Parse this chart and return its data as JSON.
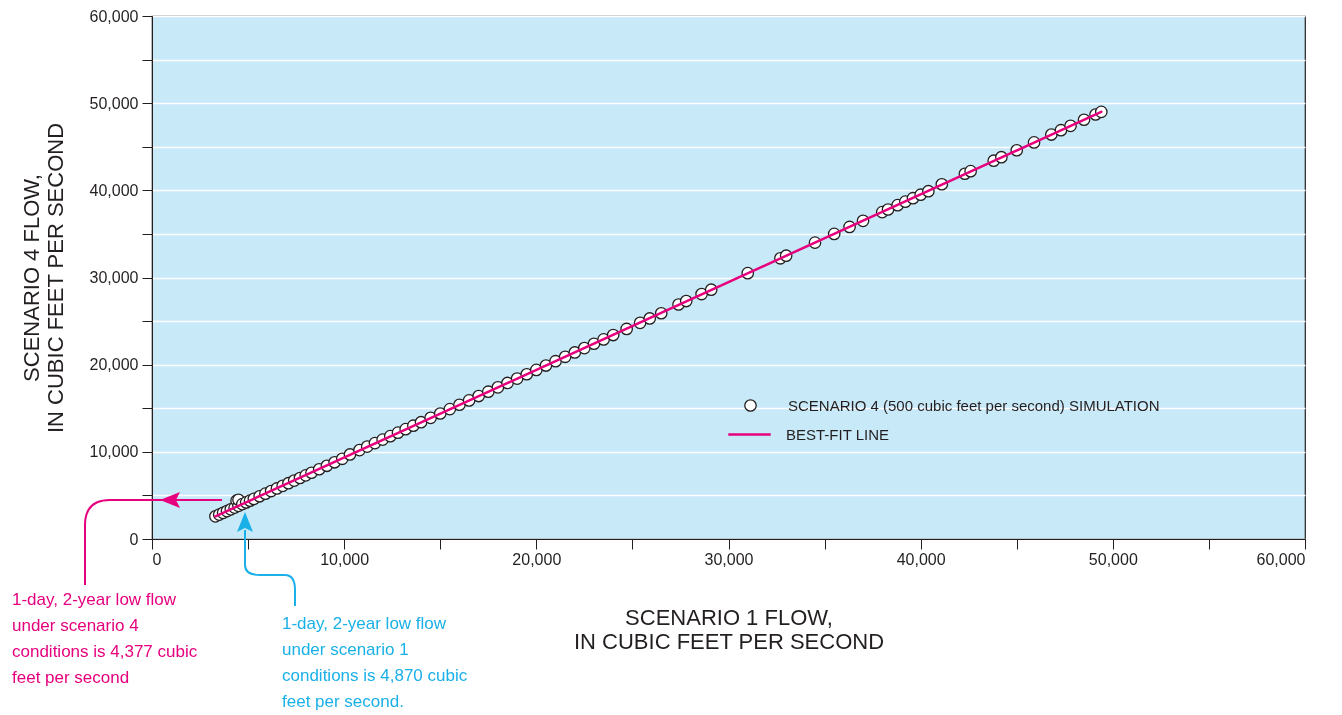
{
  "chart_data": {
    "type": "scatter",
    "xlabel": "SCENARIO 1 FLOW,\nIN CUBIC FEET PER SECOND",
    "ylabel": "SCENARIO 4 FLOW,\nIN CUBIC FEET PER SECOND",
    "xlim": [
      0,
      60000
    ],
    "ylim": [
      0,
      60000
    ],
    "xticks": [
      0,
      {
        "value": 5000,
        "label": null
      },
      {
        "value": 10000,
        "label": "10,000"
      },
      {
        "value": 15000,
        "label": null
      },
      {
        "value": 20000,
        "label": "20,000"
      },
      {
        "value": 25000,
        "label": null
      },
      {
        "value": 30000,
        "label": "30,000"
      },
      {
        "value": 35000,
        "label": null
      },
      {
        "value": 40000,
        "label": "40,000"
      },
      {
        "value": 45000,
        "label": null
      },
      {
        "value": 50000,
        "label": "50,000"
      },
      {
        "value": 55000,
        "label": null
      },
      {
        "value": 60000,
        "label": "60,000"
      }
    ],
    "yticks": [
      0,
      {
        "value": 5000,
        "label": null
      },
      {
        "value": 10000,
        "label": "10,000"
      },
      {
        "value": 15000,
        "label": null
      },
      {
        "value": 20000,
        "label": "20,000"
      },
      {
        "value": 25000,
        "label": null
      },
      {
        "value": 30000,
        "label": "30,000"
      },
      {
        "value": 35000,
        "label": null
      },
      {
        "value": 40000,
        "label": "40,000"
      },
      {
        "value": 45000,
        "label": null
      },
      {
        "value": 50000,
        "label": "50,000"
      },
      {
        "value": 55000,
        "label": null
      },
      {
        "value": 60000,
        "label": "60,000"
      }
    ],
    "grid": "y",
    "legend": "right",
    "series": [
      {
        "name": "SCENARIO 4 (500 cubic feet per second) SIMULATION",
        "color": "#ffffff",
        "marker": "circle",
        "x": [
          3300,
          3500,
          3700,
          3900,
          4100,
          4300,
          4400,
          4500,
          4500,
          4700,
          4900,
          5100,
          5300,
          5600,
          5900,
          6200,
          6500,
          6800,
          7100,
          7400,
          7700,
          8000,
          8300,
          8700,
          9100,
          9500,
          9900,
          10300,
          10800,
          11200,
          11600,
          12000,
          12400,
          12800,
          13200,
          13600,
          14000,
          14500,
          15000,
          15500,
          16000,
          16500,
          17000,
          17500,
          18000,
          18500,
          19000,
          19500,
          20000,
          20500,
          21000,
          21500,
          22000,
          22500,
          23000,
          23500,
          24000,
          24700,
          25400,
          25900,
          26500,
          27400,
          27800,
          28600,
          29100,
          31000,
          32700,
          33000,
          34500,
          35500,
          36300,
          37000,
          38000,
          38300,
          38800,
          39200,
          39600,
          40000,
          40400,
          41100,
          42300,
          42600,
          43800,
          44200,
          45000,
          45900,
          46800,
          47300,
          47800,
          48500,
          49100,
          49400
        ],
        "values": [
          2600,
          2800,
          3000,
          3200,
          3400,
          3600,
          4400,
          3800,
          4500,
          4000,
          4200,
          4400,
          4600,
          4900,
          5200,
          5500,
          5800,
          6100,
          6400,
          6700,
          7000,
          7300,
          7600,
          8000,
          8400,
          8800,
          9200,
          9700,
          10200,
          10600,
          11000,
          11400,
          11800,
          12200,
          12600,
          13000,
          13400,
          13900,
          14400,
          14900,
          15400,
          15900,
          16400,
          16900,
          17400,
          17900,
          18400,
          18900,
          19400,
          19900,
          20400,
          20900,
          21400,
          21900,
          22400,
          22900,
          23400,
          24100,
          24800,
          25300,
          25900,
          26900,
          27300,
          28100,
          28600,
          30500,
          32200,
          32500,
          34000,
          35000,
          35800,
          36500,
          37500,
          37800,
          38300,
          38700,
          39100,
          39500,
          39900,
          40700,
          41900,
          42200,
          43400,
          43800,
          44600,
          45500,
          46400,
          46900,
          47400,
          48100,
          48700,
          49000
        ]
      },
      {
        "name": "BEST-FIT LINE",
        "type": "line",
        "color": "#e6007e",
        "x": [
          3300,
          49400
        ],
        "values": [
          2600,
          49000
        ]
      }
    ],
    "annotations": [
      "1-day, 2-year low flow under scenario 4 conditions is 4,377 cubic feet per second",
      "1-day, 2-year low flow under scenario 1 conditions is 4,870 cubic feet per second."
    ]
  }
}
